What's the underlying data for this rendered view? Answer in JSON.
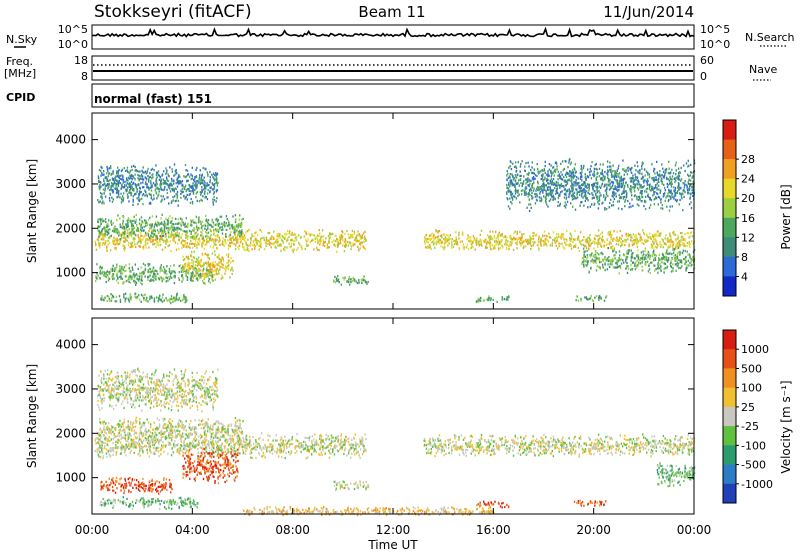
{
  "header": {
    "station": "Stokkseyri (fitACF)",
    "beam": "Beam 11",
    "date": "11/Jun/2014"
  },
  "noise_panel": {
    "left_label": "N.Sky",
    "right_label": "N.Search",
    "left_ticks": [
      "10^5",
      "10^0"
    ],
    "right_ticks": [
      "10^5",
      "10^0"
    ]
  },
  "freq_panel": {
    "left_label_1": "Freq.",
    "left_label_2": "[MHz]",
    "right_label": "Nave",
    "left_ticks": [
      "18",
      "8"
    ],
    "right_ticks": [
      "60",
      "0"
    ]
  },
  "cpid": {
    "label": "CPID",
    "mode": "normal (fast) 151"
  },
  "x_axis": {
    "label": "Time UT",
    "ticks": [
      "00:00",
      "04:00",
      "08:00",
      "12:00",
      "16:00",
      "20:00",
      "00:00"
    ]
  },
  "chart_data": [
    {
      "type": "heatmap",
      "quantity": "Power",
      "ylabel": "Slant Range [km]",
      "yticks": [
        1000,
        2000,
        3000,
        4000
      ],
      "ylim": [
        180,
        4600
      ],
      "xlim_hours": [
        0,
        24
      ],
      "colorbar": {
        "label": "Power [dB]",
        "ticks": [
          "4",
          "8",
          "12",
          "16",
          "20",
          "24",
          "28"
        ],
        "colors": [
          "#1428c8",
          "#2c6ad8",
          "#3c8c78",
          "#4ca85c",
          "#9cd040",
          "#e8d828",
          "#f0a020",
          "#e86018",
          "#d81c14"
        ]
      },
      "scatter_bands": [
        {
          "t_start": 0.1,
          "t_end": 10.9,
          "r_center": 1750,
          "r_width": 260,
          "level": 5
        },
        {
          "t_start": 13.2,
          "t_end": 24.0,
          "r_center": 1750,
          "r_width": 240,
          "level": 5
        },
        {
          "t_start": 0.2,
          "t_end": 6.0,
          "r_center": 2050,
          "r_width": 300,
          "level": 3
        },
        {
          "t_start": 0.1,
          "t_end": 4.8,
          "r_center": 1000,
          "r_width": 260,
          "level": 3
        },
        {
          "t_start": 0.3,
          "t_end": 3.8,
          "r_center": 450,
          "r_width": 120,
          "level": 3
        },
        {
          "t_start": 3.6,
          "t_end": 5.6,
          "r_center": 1200,
          "r_width": 350,
          "level": 5
        },
        {
          "t_start": 9.6,
          "t_end": 11.0,
          "r_center": 850,
          "r_width": 120,
          "level": 3
        },
        {
          "t_start": 15.3,
          "t_end": 16.6,
          "r_center": 420,
          "r_width": 80,
          "level": 3
        },
        {
          "t_start": 19.2,
          "t_end": 20.5,
          "r_center": 450,
          "r_width": 80,
          "level": 3
        },
        {
          "t_start": 19.5,
          "t_end": 24.0,
          "r_center": 1300,
          "r_width": 300,
          "level": 3
        },
        {
          "t_start": 0.2,
          "t_end": 5.0,
          "r_center": 3000,
          "r_width": 500,
          "level": 2
        },
        {
          "t_start": 16.5,
          "t_end": 24.0,
          "r_center": 3000,
          "r_width": 600,
          "level": 2
        }
      ]
    },
    {
      "type": "heatmap",
      "quantity": "Velocity",
      "ylabel": "Slant Range [km]",
      "yticks": [
        1000,
        2000,
        3000,
        4000
      ],
      "ylim": [
        180,
        4600
      ],
      "xlim_hours": [
        0,
        24
      ],
      "colorbar": {
        "label": "Velocity [m s⁻¹]",
        "ticks": [
          "1000",
          "500",
          "100",
          "25",
          "-25",
          "-100",
          "-500",
          "-1000"
        ],
        "colors": [
          "#2040b8",
          "#2c7cc8",
          "#2c9c70",
          "#60c040",
          "#c8c8c0",
          "#f0c030",
          "#f09020",
          "#e85018",
          "#d81c14"
        ]
      },
      "scatter_bands": [
        {
          "t_start": 0.1,
          "t_end": 10.9,
          "r_center": 1750,
          "r_width": 300,
          "level": 4
        },
        {
          "t_start": 13.2,
          "t_end": 24.0,
          "r_center": 1750,
          "r_width": 260,
          "level": 4
        },
        {
          "t_start": 0.2,
          "t_end": 6.0,
          "r_center": 2100,
          "r_width": 300,
          "level": 4
        },
        {
          "t_start": 0.3,
          "t_end": 3.2,
          "r_center": 850,
          "r_width": 200,
          "level": 7
        },
        {
          "t_start": 3.6,
          "t_end": 5.8,
          "r_center": 1300,
          "r_width": 420,
          "level": 7
        },
        {
          "t_start": 0.3,
          "t_end": 4.2,
          "r_center": 450,
          "r_width": 140,
          "level": 3
        },
        {
          "t_start": 9.6,
          "t_end": 11.0,
          "r_center": 850,
          "r_width": 120,
          "level": 4
        },
        {
          "t_start": 6.0,
          "t_end": 16.0,
          "r_center": 260,
          "r_width": 120,
          "level": 5
        },
        {
          "t_start": 15.3,
          "t_end": 16.6,
          "r_center": 420,
          "r_width": 80,
          "level": 7
        },
        {
          "t_start": 19.2,
          "t_end": 20.5,
          "r_center": 450,
          "r_width": 80,
          "level": 7
        },
        {
          "t_start": 22.5,
          "t_end": 24.0,
          "r_center": 1100,
          "r_width": 300,
          "level": 3
        },
        {
          "t_start": 0.2,
          "t_end": 5.0,
          "r_center": 3000,
          "r_width": 500,
          "level": 4
        }
      ]
    }
  ]
}
